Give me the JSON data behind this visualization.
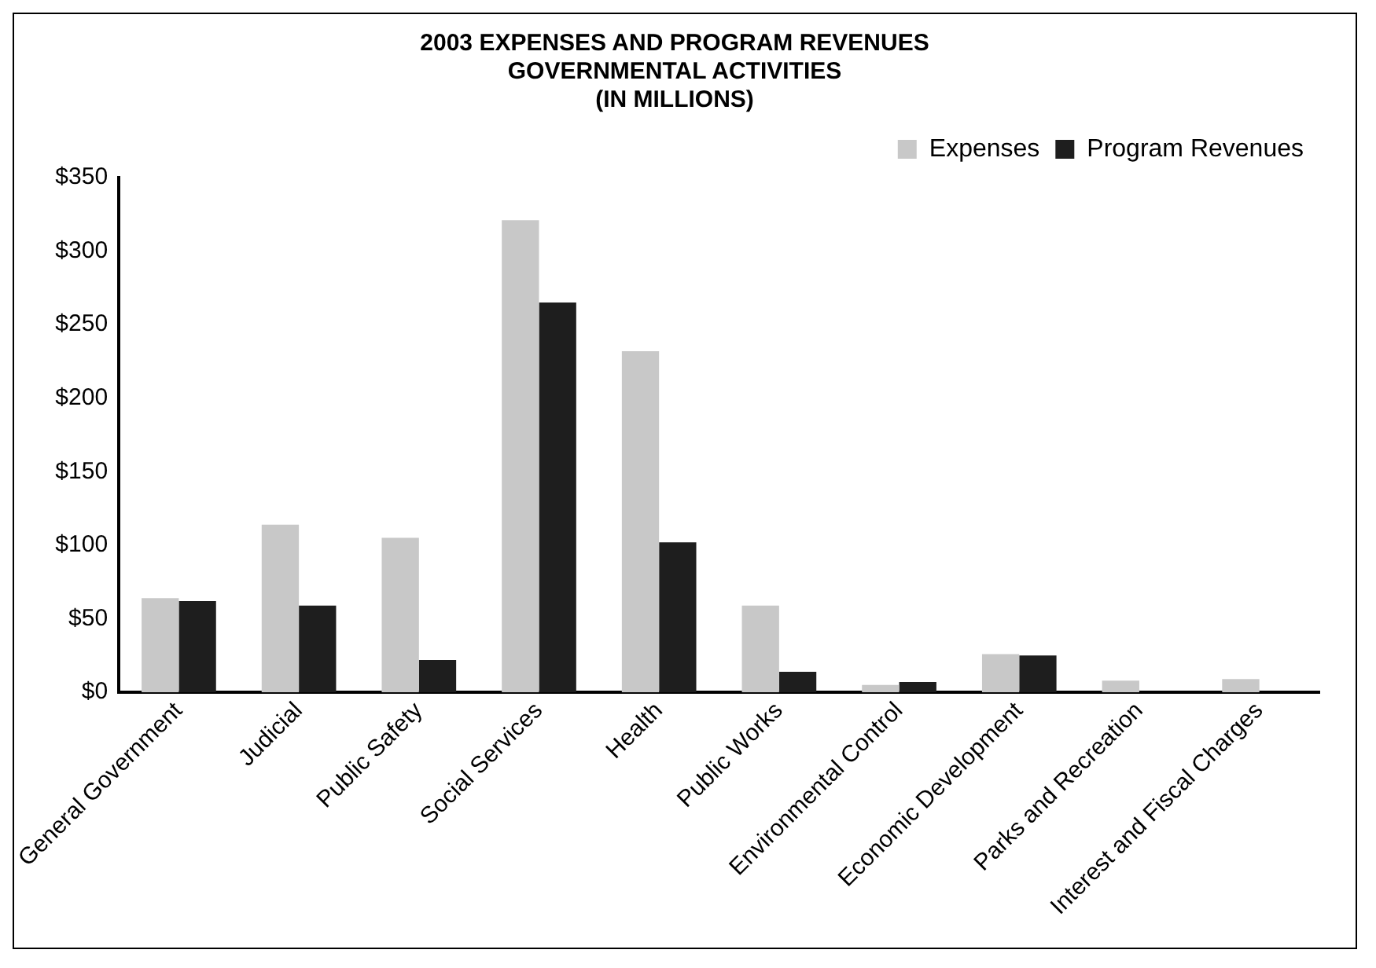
{
  "chart_data": {
    "type": "bar",
    "title": [
      "2003 EXPENSES AND PROGRAM REVENUES",
      "GOVERNMENTAL ACTIVITIES",
      "(IN MILLIONS)"
    ],
    "categories": [
      "General Government",
      "Judicial",
      "Public Safety",
      "Social Services",
      "Health",
      "Public Works",
      "Environmental Control",
      "Economic Development",
      "Parks and Recreation",
      "Interest and Fiscal Charges"
    ],
    "series": [
      {
        "name": "Expenses",
        "color": "#c8c8c8",
        "values": [
          64,
          114,
          105,
          321,
          232,
          59,
          5,
          26,
          8,
          9
        ]
      },
      {
        "name": "Program Revenues",
        "color": "#1e1e1e",
        "values": [
          62,
          59,
          22,
          265,
          102,
          14,
          7,
          25,
          0,
          0
        ]
      }
    ],
    "ylim": [
      0,
      350
    ],
    "yticks": [
      {
        "value": 0,
        "label": "$0"
      },
      {
        "value": 50,
        "label": "$50"
      },
      {
        "value": 100,
        "label": "$100"
      },
      {
        "value": 150,
        "label": "$150"
      },
      {
        "value": 200,
        "label": "$200"
      },
      {
        "value": 250,
        "label": "$250"
      },
      {
        "value": 300,
        "label": "$300"
      },
      {
        "value": 350,
        "label": "$350"
      }
    ],
    "grid": false,
    "legend": "top right"
  }
}
